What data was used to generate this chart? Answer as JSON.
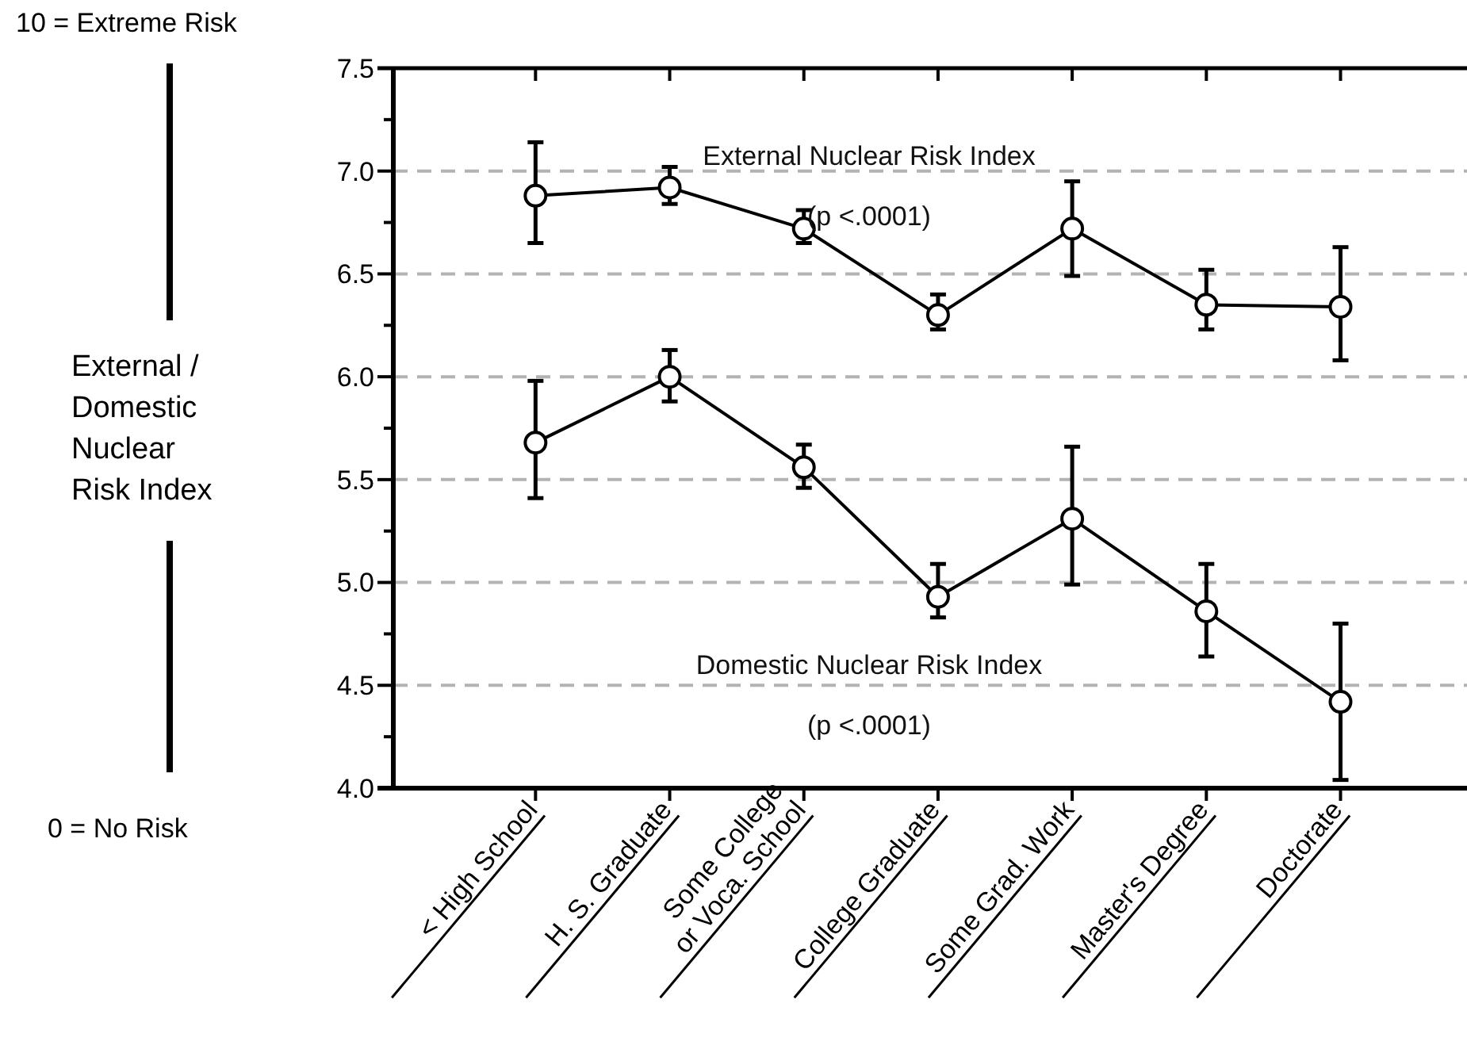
{
  "chart_data": {
    "type": "line",
    "ylabel": "External / Domestic Nuclear Risk Index",
    "categories": [
      "< High School",
      "H. S. Graduate",
      "Some College\nor Voca. School",
      "College Graduate",
      "Some Grad. Work",
      "Master's Degree",
      "Doctorate"
    ],
    "series": [
      {
        "color": "#000000",
        "values": [
          6.88,
          6.92,
          6.72,
          6.3,
          6.72,
          6.35,
          6.34
        ],
        "errors": [
          [
            6.65,
            7.14
          ],
          [
            6.84,
            7.02
          ],
          [
            6.65,
            6.81
          ],
          [
            6.23,
            6.4
          ],
          [
            6.49,
            6.95
          ],
          [
            6.23,
            6.52
          ],
          [
            6.08,
            6.63
          ]
        ]
      },
      {
        "color": "#000000",
        "values": [
          5.68,
          6.0,
          5.56,
          4.93,
          5.31,
          4.86,
          4.42
        ],
        "errors": [
          [
            5.41,
            5.98
          ],
          [
            5.88,
            6.13
          ],
          [
            5.46,
            5.67
          ],
          [
            4.83,
            5.09
          ],
          [
            4.99,
            5.66
          ],
          [
            4.64,
            5.09
          ],
          [
            4.04,
            4.8
          ]
        ]
      }
    ],
    "ylim": [
      4,
      7.5
    ],
    "yticks": [
      {
        "value": 4,
        "label": "4.0"
      },
      {
        "value": 4.25,
        "label": null
      },
      {
        "value": 4.5,
        "label": "4.5"
      },
      {
        "value": 4.75,
        "label": null
      },
      {
        "value": 5,
        "label": "5.0"
      },
      {
        "value": 5.25,
        "label": null
      },
      {
        "value": 5.5,
        "label": "5.5"
      },
      {
        "value": 5.75,
        "label": null
      },
      {
        "value": 6,
        "label": "6.0"
      },
      {
        "value": 6.25,
        "label": null
      },
      {
        "value": 6.5,
        "label": "6.5"
      },
      {
        "value": 6.75,
        "label": null
      },
      {
        "value": 7,
        "label": "7.0"
      },
      {
        "value": 7.25,
        "label": null
      },
      {
        "value": 7.5,
        "label": "7.5"
      }
    ],
    "grid": "y",
    "marker": "circle",
    "line_style": "solid",
    "annotations": [
      "External Nuclear Risk Index",
      "(p <.0001)",
      "Domestic Nuclear Risk Index",
      "(p <.0001)",
      "10 = Extreme Risk",
      "0 = No Risk"
    ]
  }
}
